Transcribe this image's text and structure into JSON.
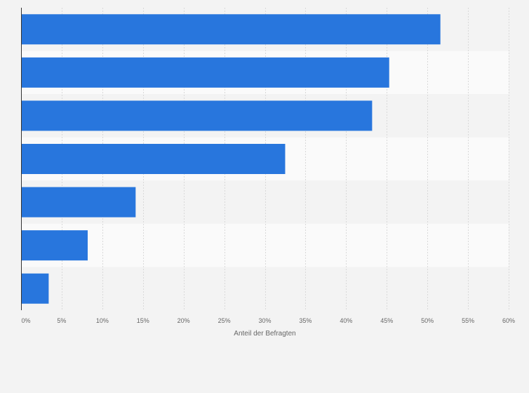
{
  "chart_data": {
    "type": "bar",
    "orientation": "horizontal",
    "categories": [
      "",
      "",
      "",
      "",
      "",
      "",
      ""
    ],
    "values": [
      51.6,
      45.3,
      43.2,
      32.5,
      14.1,
      8.2,
      3.4
    ],
    "xlabel": "Anteil der Befragten",
    "ylabel": "",
    "xlim": [
      0,
      60
    ],
    "ticks": [
      "0%",
      "5%",
      "10%",
      "15%",
      "20%",
      "25%",
      "30%",
      "35%",
      "40%",
      "45%",
      "50%",
      "55%",
      "60%"
    ],
    "tick_values": [
      0,
      5,
      10,
      15,
      20,
      25,
      30,
      35,
      40,
      45,
      50,
      55,
      60
    ],
    "grid": true,
    "colors": {
      "bar": "#2876dd",
      "band_light": "#fafafa",
      "band_dark": "#f3f3f3",
      "grid": "#d9d9d9",
      "axis": "#333333"
    }
  }
}
